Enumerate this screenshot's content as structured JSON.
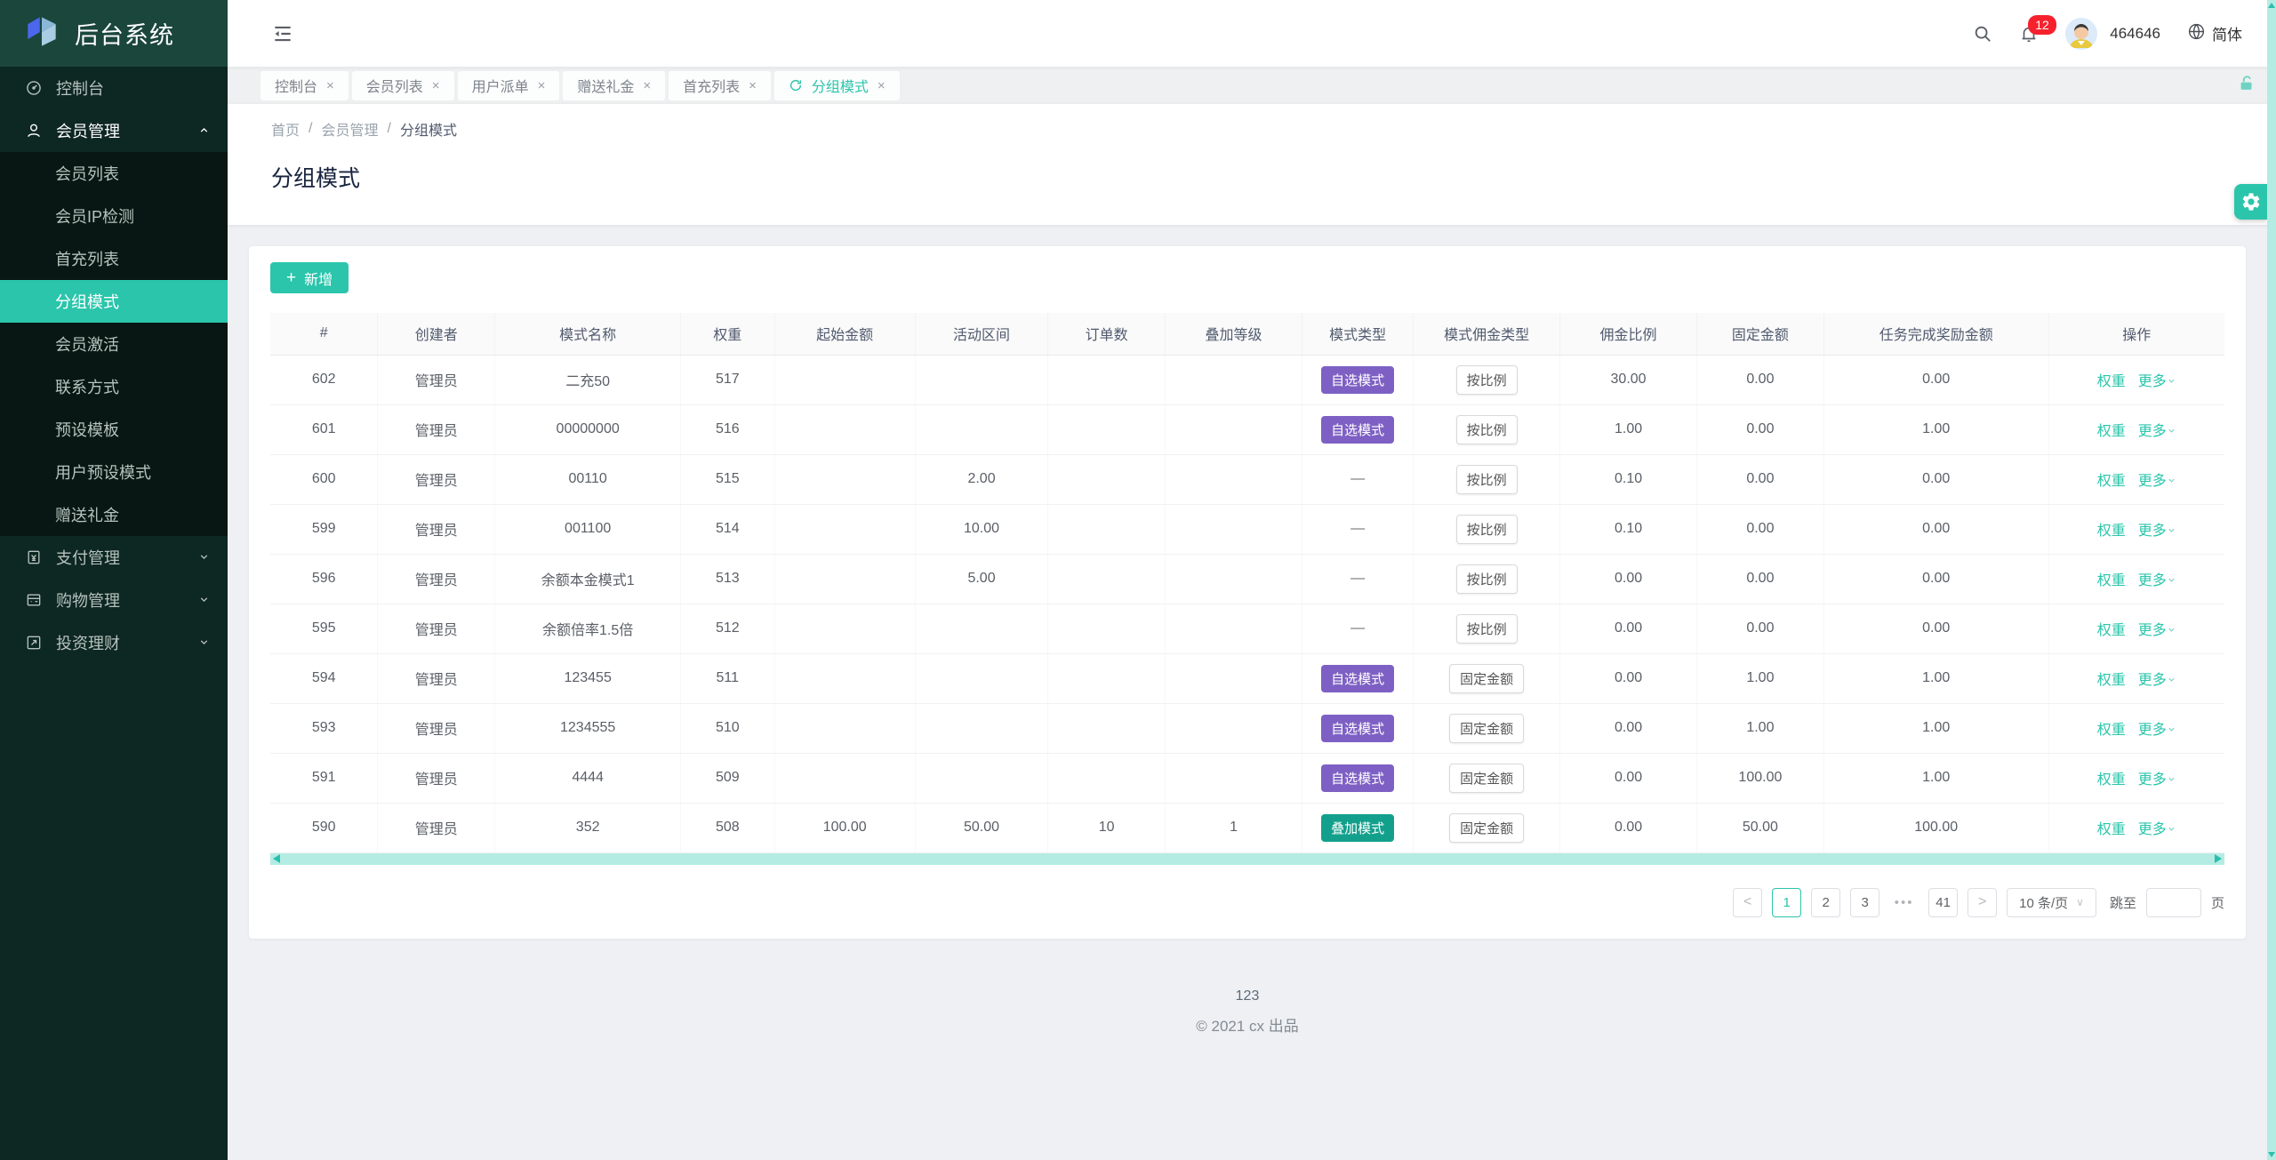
{
  "app": {
    "title": "后台系统"
  },
  "sidebar": {
    "items": [
      {
        "label": "控制台",
        "icon": "dashboard-icon",
        "type": "item"
      },
      {
        "label": "会员管理",
        "icon": "user-icon",
        "type": "group",
        "expanded": true,
        "children": [
          "会员列表",
          "会员IP检测",
          "首充列表",
          "分组模式",
          "会员激活",
          "联系方式",
          "预设模板",
          "用户预设模式",
          "赠送礼金"
        ],
        "active_child": "分组模式"
      },
      {
        "label": "支付管理",
        "icon": "payment-icon",
        "type": "group",
        "expanded": false
      },
      {
        "label": "购物管理",
        "icon": "shopping-icon",
        "type": "group",
        "expanded": false
      },
      {
        "label": "投资理财",
        "icon": "invest-icon",
        "type": "group",
        "expanded": false
      }
    ]
  },
  "topbar": {
    "user": {
      "name": "464646",
      "badge_count": "12",
      "language": "简体"
    }
  },
  "tabs": {
    "close_glyph": "×",
    "items": [
      {
        "label": "控制台",
        "active": false
      },
      {
        "label": "会员列表",
        "active": false
      },
      {
        "label": "用户派单",
        "active": false
      },
      {
        "label": "赠送礼金",
        "active": false
      },
      {
        "label": "首充列表",
        "active": false
      },
      {
        "label": "分组模式",
        "active": true
      }
    ]
  },
  "breadcrumb": {
    "0": "首页",
    "1": "会员管理",
    "2": "分组模式",
    "sep": "/"
  },
  "page": {
    "title": "分组模式"
  },
  "toolbar": {
    "add_label": "新增",
    "add_icon": "+"
  },
  "table": {
    "columns": [
      {
        "key": "id",
        "label": "#"
      },
      {
        "key": "creator",
        "label": "创建者"
      },
      {
        "key": "name",
        "label": "模式名称"
      },
      {
        "key": "weight",
        "label": "权重"
      },
      {
        "key": "start_amount",
        "label": "起始金额"
      },
      {
        "key": "range",
        "label": "活动区间"
      },
      {
        "key": "orders",
        "label": "订单数"
      },
      {
        "key": "stack_level",
        "label": "叠加等级"
      },
      {
        "key": "mode_type",
        "label": "模式类型"
      },
      {
        "key": "commission_type",
        "label": "模式佣金类型"
      },
      {
        "key": "ratio",
        "label": "佣金比例"
      },
      {
        "key": "fixed",
        "label": "固定金额"
      },
      {
        "key": "reward",
        "label": "任务完成奖励金额"
      },
      {
        "key": "ops",
        "label": "操作"
      }
    ],
    "ops": [
      "权重",
      "更多"
    ],
    "rows": [
      {
        "id": "602",
        "creator": "管理员",
        "name": "二充50",
        "weight": "517",
        "start_amount": "",
        "range": "",
        "orders": "",
        "stack_level": "",
        "mode_type": {
          "label": "自选模式",
          "style": "purple"
        },
        "commission_type": "按比例",
        "ratio": "30.00",
        "fixed": "0.00",
        "reward": "0.00"
      },
      {
        "id": "601",
        "creator": "管理员",
        "name": "00000000",
        "weight": "516",
        "start_amount": "",
        "range": "",
        "orders": "",
        "stack_level": "",
        "mode_type": {
          "label": "自选模式",
          "style": "purple"
        },
        "commission_type": "按比例",
        "ratio": "1.00",
        "fixed": "0.00",
        "reward": "1.00"
      },
      {
        "id": "600",
        "creator": "管理员",
        "name": "00110",
        "weight": "515",
        "start_amount": "",
        "range": "2.00",
        "orders": "",
        "stack_level": "",
        "mode_type": {
          "label": "—",
          "style": "none"
        },
        "commission_type": "按比例",
        "ratio": "0.10",
        "fixed": "0.00",
        "reward": "0.00"
      },
      {
        "id": "599",
        "creator": "管理员",
        "name": "001100",
        "weight": "514",
        "start_amount": "",
        "range": "10.00",
        "orders": "",
        "stack_level": "",
        "mode_type": {
          "label": "—",
          "style": "none"
        },
        "commission_type": "按比例",
        "ratio": "0.10",
        "fixed": "0.00",
        "reward": "0.00"
      },
      {
        "id": "596",
        "creator": "管理员",
        "name": "余额本金模式1",
        "weight": "513",
        "start_amount": "",
        "range": "5.00",
        "orders": "",
        "stack_level": "",
        "mode_type": {
          "label": "—",
          "style": "none"
        },
        "commission_type": "按比例",
        "ratio": "0.00",
        "fixed": "0.00",
        "reward": "0.00"
      },
      {
        "id": "595",
        "creator": "管理员",
        "name": "余额倍率1.5倍",
        "weight": "512",
        "start_amount": "",
        "range": "",
        "orders": "",
        "stack_level": "",
        "mode_type": {
          "label": "—",
          "style": "none"
        },
        "commission_type": "按比例",
        "ratio": "0.00",
        "fixed": "0.00",
        "reward": "0.00"
      },
      {
        "id": "594",
        "creator": "管理员",
        "name": "123455",
        "weight": "511",
        "start_amount": "",
        "range": "",
        "orders": "",
        "stack_level": "",
        "mode_type": {
          "label": "自选模式",
          "style": "purple"
        },
        "commission_type": "固定金额",
        "ratio": "0.00",
        "fixed": "1.00",
        "reward": "1.00"
      },
      {
        "id": "593",
        "creator": "管理员",
        "name": "1234555",
        "weight": "510",
        "start_amount": "",
        "range": "",
        "orders": "",
        "stack_level": "",
        "mode_type": {
          "label": "自选模式",
          "style": "purple"
        },
        "commission_type": "固定金额",
        "ratio": "0.00",
        "fixed": "1.00",
        "reward": "1.00"
      },
      {
        "id": "591",
        "creator": "管理员",
        "name": "4444",
        "weight": "509",
        "start_amount": "",
        "range": "",
        "orders": "",
        "stack_level": "",
        "mode_type": {
          "label": "自选模式",
          "style": "purple"
        },
        "commission_type": "固定金额",
        "ratio": "0.00",
        "fixed": "100.00",
        "reward": "1.00"
      },
      {
        "id": "590",
        "creator": "管理员",
        "name": "352",
        "weight": "508",
        "start_amount": "100.00",
        "range": "50.00",
        "orders": "10",
        "stack_level": "1",
        "mode_type": {
          "label": "叠加模式",
          "style": "teal"
        },
        "commission_type": "固定金额",
        "ratio": "0.00",
        "fixed": "50.00",
        "reward": "100.00"
      }
    ]
  },
  "pagination": {
    "prev_glyph": "<",
    "next_glyph": ">",
    "pages": [
      "1",
      "2",
      "3"
    ],
    "active_page": "1",
    "ellipsis": "•••",
    "last_page": "41",
    "page_size": "10 条/页",
    "size_chev": "∨",
    "jump_label": "跳至",
    "jump_suffix": "页"
  },
  "footer": {
    "line1": "123",
    "line2": "© 2021 cx 出品"
  },
  "colors": {
    "accent_teal": "#2bc5ab",
    "badge_purple": "#7e60c4",
    "badge_teal": "#12a08c",
    "notice_red": "#f5222d",
    "sidebar_bg": "#0d2722",
    "submenu_bg": "#081713",
    "logo_bg": "#1b463c",
    "scrollbar_track": "#b4ece3"
  }
}
